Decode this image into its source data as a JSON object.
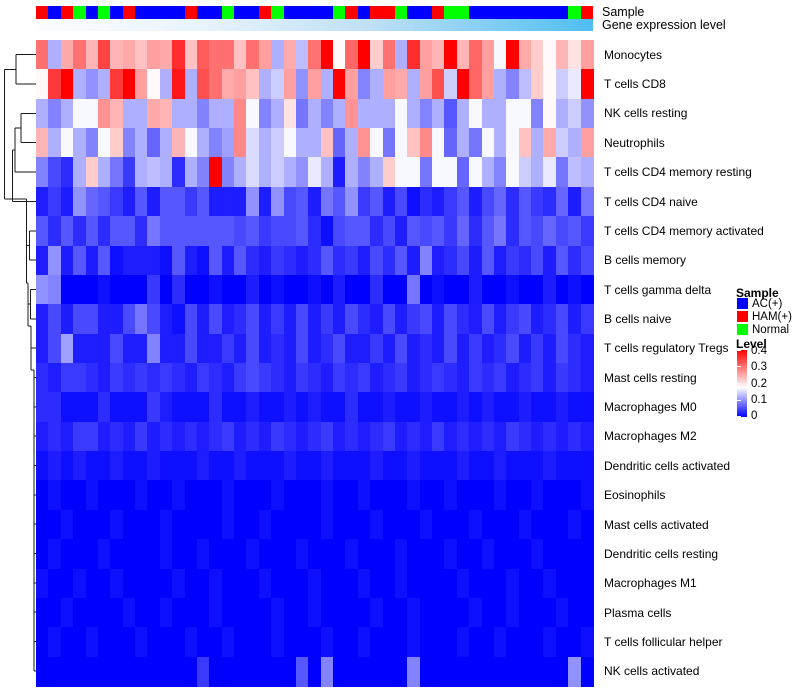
{
  "annotation_tracks": {
    "sample_label": "Sample",
    "gene_expression_label": "Gene expression level",
    "gene_expression_gradient": {
      "start": "#FDFDFF",
      "mid": "#BFE0F5",
      "end": "#4FBEF2"
    }
  },
  "legend": {
    "sample": {
      "title": "Sample",
      "items": [
        {
          "label": "AC(+)",
          "color": "#0000FF"
        },
        {
          "label": "HAM(+)",
          "color": "#FF0000"
        },
        {
          "label": "Normal",
          "color": "#00FF00"
        }
      ]
    },
    "level": {
      "title": "Level",
      "ticks": [
        "0.4",
        "0.3",
        "0.2",
        "0.1",
        "0"
      ],
      "top_color": "#FF0000",
      "mid_color": "#FFFFFF",
      "bottom_color": "#0000FF"
    }
  },
  "chart_data": {
    "type": "heatmap",
    "title": "",
    "rows": [
      "Monocytes",
      "T cells CD8",
      "NK cells resting",
      "Neutrophils",
      "T cells CD4 memory resting",
      "T cells CD4 naive",
      "T cells CD4 memory activated",
      "B cells memory",
      "T cells gamma delta",
      "B cells naive",
      "T cells regulatory Tregs",
      "Mast cells resting",
      "Macrophages M0",
      "Macrophages M2",
      "Dendritic cells activated",
      "Eosinophils",
      "Mast cells activated",
      "Dendritic cells resting",
      "Macrophages M1",
      "Plasma cells",
      "T cells follicular helper",
      "NK cells activated"
    ],
    "n_columns": 45,
    "value_range": [
      0,
      0.4
    ],
    "colormap": {
      "low": "#0000FF",
      "mid": "#FFFFFF",
      "high": "#FF0000",
      "midpoint": 0.175
    },
    "row_dendrogram": true,
    "sample_groups_by_column": [
      "HAM(+)",
      "AC(+)",
      "HAM(+)",
      "Normal",
      "AC(+)",
      "Normal",
      "AC(+)",
      "HAM(+)",
      "AC(+)",
      "AC(+)",
      "AC(+)",
      "AC(+)",
      "HAM(+)",
      "AC(+)",
      "AC(+)",
      "Normal",
      "AC(+)",
      "AC(+)",
      "HAM(+)",
      "Normal",
      "AC(+)",
      "AC(+)",
      "AC(+)",
      "AC(+)",
      "Normal",
      "HAM(+)",
      "AC(+)",
      "HAM(+)",
      "HAM(+)",
      "Normal",
      "AC(+)",
      "AC(+)",
      "HAM(+)",
      "Normal",
      "Normal",
      "AC(+)",
      "AC(+)",
      "AC(+)",
      "AC(+)",
      "AC(+)",
      "AC(+)",
      "AC(+)",
      "AC(+)",
      "Normal",
      "HAM(+)"
    ],
    "values": [
      [
        0.3,
        0.12,
        0.25,
        0.3,
        0.24,
        0.34,
        0.24,
        0.25,
        0.23,
        0.26,
        0.25,
        0.36,
        0.23,
        0.32,
        0.3,
        0.3,
        0.23,
        0.3,
        0.26,
        0.12,
        0.25,
        0.13,
        0.3,
        0.4,
        0.18,
        0.31,
        0.4,
        0.22,
        0.3,
        0.12,
        0.36,
        0.26,
        0.24,
        0.4,
        0.24,
        0.31,
        0.26,
        0.17,
        0.4,
        0.25,
        0.22,
        0.18,
        0.24,
        0.2,
        0.26
      ],
      [
        0.18,
        0.35,
        0.4,
        0.12,
        0.1,
        0.12,
        0.35,
        0.4,
        0.26,
        0.18,
        0.12,
        0.38,
        0.12,
        0.33,
        0.3,
        0.25,
        0.26,
        0.23,
        0.12,
        0.14,
        0.26,
        0.1,
        0.26,
        0.12,
        0.4,
        0.26,
        0.09,
        0.12,
        0.26,
        0.25,
        0.12,
        0.26,
        0.33,
        0.14,
        0.4,
        0.31,
        0.26,
        0.12,
        0.09,
        0.13,
        0.22,
        0.18,
        0.14,
        0.16,
        0.4
      ],
      [
        0.12,
        0.09,
        0.12,
        0.17,
        0.17,
        0.27,
        0.24,
        0.12,
        0.12,
        0.25,
        0.24,
        0.12,
        0.12,
        0.09,
        0.12,
        0.12,
        0.28,
        0.17,
        0.09,
        0.12,
        0.2,
        0.08,
        0.12,
        0.09,
        0.12,
        0.27,
        0.12,
        0.12,
        0.12,
        0.17,
        0.12,
        0.09,
        0.12,
        0.06,
        0.12,
        0.17,
        0.12,
        0.12,
        0.17,
        0.17,
        0.09,
        0.18,
        0.12,
        0.14,
        0.1
      ],
      [
        0.24,
        0.12,
        0.17,
        0.12,
        0.09,
        0.17,
        0.22,
        0.09,
        0.12,
        0.07,
        0.12,
        0.24,
        0.17,
        0.12,
        0.09,
        0.11,
        0.28,
        0.15,
        0.12,
        0.14,
        0.17,
        0.12,
        0.12,
        0.23,
        0.07,
        0.12,
        0.27,
        0.17,
        0.08,
        0.17,
        0.23,
        0.28,
        0.17,
        0.07,
        0.12,
        0.08,
        0.17,
        0.12,
        0.17,
        0.23,
        0.12,
        0.25,
        0.14,
        0.12,
        0.26
      ],
      [
        0.09,
        0.05,
        0.03,
        0.12,
        0.22,
        0.12,
        0.08,
        0.04,
        0.12,
        0.13,
        0.12,
        0.03,
        0.12,
        0.09,
        0.4,
        0.09,
        0.12,
        0.15,
        0.12,
        0.14,
        0.12,
        0.1,
        0.16,
        0.12,
        0.02,
        0.12,
        0.09,
        0.12,
        0.22,
        0.17,
        0.17,
        0.08,
        0.17,
        0.17,
        0.07,
        0.17,
        0.12,
        0.09,
        0.17,
        0.14,
        0.12,
        0.16,
        0.08,
        0.13,
        0.12
      ],
      [
        0.02,
        0.04,
        0.02,
        0.1,
        0.07,
        0.06,
        0.04,
        0.02,
        0.06,
        0.02,
        0.06,
        0.06,
        0.04,
        0.06,
        0.02,
        0.02,
        0.02,
        0.1,
        0.02,
        0.1,
        0.05,
        0.06,
        0.02,
        0.08,
        0.06,
        0.1,
        0.04,
        0.06,
        0.02,
        0.05,
        0.01,
        0.03,
        0.02,
        0.04,
        0.06,
        0.02,
        0.05,
        0.07,
        0.03,
        0.06,
        0.04,
        0.03,
        0.07,
        0.02,
        0.08
      ],
      [
        0.06,
        0.03,
        0.06,
        0.03,
        0.06,
        0.03,
        0.06,
        0.06,
        0.03,
        0.08,
        0.06,
        0.06,
        0.06,
        0.06,
        0.06,
        0.06,
        0.05,
        0.06,
        0.04,
        0.05,
        0.05,
        0.06,
        0.03,
        0.01,
        0.05,
        0.06,
        0.06,
        0.03,
        0.05,
        0.02,
        0.06,
        0.05,
        0.06,
        0.04,
        0.07,
        0.03,
        0.06,
        0.08,
        0.03,
        0.06,
        0.05,
        0.07,
        0.05,
        0.06,
        0.04
      ],
      [
        0.02,
        0.1,
        0.02,
        0.06,
        0.02,
        0.06,
        0.01,
        0.02,
        0.02,
        0.02,
        0.01,
        0.06,
        0.02,
        0.01,
        0.06,
        0.02,
        0.06,
        0.03,
        0.02,
        0.04,
        0.03,
        0.02,
        0.03,
        0.06,
        0.03,
        0.04,
        0.02,
        0.05,
        0.03,
        0.06,
        0.02,
        0.09,
        0.02,
        0.03,
        0.05,
        0.02,
        0.06,
        0.02,
        0.04,
        0.03,
        0.05,
        0.02,
        0.06,
        0.03,
        0.05
      ],
      [
        0.1,
        0.09,
        0,
        0,
        0,
        0.01,
        0,
        0,
        0,
        0.04,
        0,
        0.03,
        0,
        0,
        0.01,
        0,
        0,
        0.02,
        0,
        0.01,
        0,
        0,
        0.01,
        0,
        0.02,
        0,
        0,
        0.03,
        0,
        0,
        0.08,
        0,
        0.01,
        0,
        0,
        0.02,
        0,
        0,
        0.01,
        0,
        0,
        0.02,
        0,
        0.01,
        0
      ],
      [
        0.02,
        0.05,
        0.02,
        0.05,
        0.05,
        0.02,
        0.02,
        0.05,
        0.08,
        0.05,
        0.02,
        0.01,
        0.05,
        0.02,
        0.05,
        0.02,
        0.03,
        0.05,
        0.02,
        0.04,
        0.02,
        0.05,
        0.02,
        0.04,
        0.02,
        0.05,
        0.03,
        0.02,
        0.05,
        0.02,
        0.04,
        0.05,
        0.02,
        0.05,
        0.03,
        0.02,
        0.05,
        0.02,
        0.04,
        0.05,
        0.02,
        0.03,
        0.05,
        0.02,
        0.04
      ],
      [
        0.02,
        0.05,
        0.11,
        0.02,
        0.02,
        0.02,
        0.05,
        0.02,
        0.02,
        0.09,
        0.02,
        0.02,
        0.05,
        0.02,
        0.02,
        0.04,
        0.02,
        0.05,
        0.02,
        0.03,
        0.02,
        0.05,
        0.02,
        0.03,
        0.05,
        0.02,
        0.02,
        0.04,
        0.02,
        0.05,
        0.02,
        0.03,
        0.02,
        0.05,
        0.02,
        0.04,
        0.02,
        0.03,
        0.05,
        0.02,
        0.04,
        0.02,
        0.05,
        0.03,
        0.02
      ],
      [
        0.03,
        0.02,
        0.04,
        0.04,
        0.03,
        0.02,
        0.04,
        0.03,
        0.04,
        0.03,
        0.04,
        0.03,
        0.02,
        0.04,
        0.03,
        0.02,
        0.04,
        0.05,
        0.04,
        0.03,
        0.02,
        0.04,
        0.03,
        0.02,
        0.04,
        0.03,
        0.04,
        0.02,
        0.03,
        0.04,
        0.02,
        0.03,
        0.04,
        0.03,
        0.02,
        0.04,
        0.03,
        0.04,
        0.02,
        0.03,
        0.04,
        0.02,
        0.04,
        0.03,
        0.02
      ],
      [
        0.03,
        0.03,
        0.01,
        0.01,
        0.01,
        0.03,
        0.01,
        0.01,
        0.01,
        0.04,
        0.02,
        0.01,
        0.01,
        0.01,
        0.03,
        0.01,
        0.01,
        0.02,
        0.01,
        0.01,
        0.02,
        0.01,
        0.02,
        0.01,
        0.01,
        0.03,
        0.01,
        0.01,
        0.02,
        0.01,
        0.01,
        0.02,
        0.01,
        0.01,
        0.02,
        0.01,
        0.02,
        0.01,
        0.01,
        0.02,
        0.01,
        0.01,
        0.02,
        0.01,
        0.01
      ],
      [
        0.02,
        0.03,
        0.02,
        0.04,
        0.04,
        0.02,
        0.03,
        0.02,
        0.04,
        0.02,
        0.03,
        0.02,
        0.03,
        0.02,
        0.03,
        0.04,
        0.02,
        0.03,
        0.02,
        0.04,
        0.03,
        0.02,
        0.03,
        0.04,
        0.02,
        0.03,
        0.02,
        0.03,
        0.04,
        0.02,
        0.03,
        0.02,
        0.04,
        0.02,
        0.03,
        0.02,
        0.03,
        0.02,
        0.04,
        0.03,
        0.02,
        0.03,
        0.02,
        0.03,
        0.02
      ],
      [
        0.01,
        0.02,
        0.01,
        0.02,
        0.01,
        0.01,
        0.02,
        0.01,
        0.01,
        0.02,
        0.01,
        0.01,
        0.01,
        0.02,
        0.01,
        0.01,
        0.02,
        0.01,
        0.01,
        0.01,
        0.02,
        0.01,
        0.01,
        0.02,
        0.01,
        0.01,
        0.01,
        0.02,
        0.01,
        0.01,
        0.02,
        0.01,
        0.01,
        0.01,
        0.02,
        0.01,
        0.01,
        0.02,
        0.01,
        0.01,
        0.01,
        0.02,
        0.01,
        0.01,
        0.01
      ],
      [
        0,
        0.01,
        0,
        0,
        0.01,
        0,
        0,
        0,
        0.01,
        0,
        0,
        0.01,
        0,
        0,
        0,
        0.01,
        0,
        0,
        0,
        0.01,
        0,
        0,
        0,
        0.01,
        0,
        0,
        0.01,
        0,
        0,
        0,
        0.01,
        0,
        0,
        0.01,
        0,
        0,
        0,
        0.01,
        0,
        0,
        0.01,
        0,
        0,
        0,
        0.01
      ],
      [
        0,
        0,
        0.01,
        0,
        0,
        0,
        0.01,
        0,
        0,
        0,
        0.01,
        0,
        0,
        0,
        0,
        0.01,
        0,
        0,
        0.01,
        0,
        0,
        0,
        0,
        0.01,
        0,
        0,
        0,
        0.01,
        0,
        0,
        0,
        0.01,
        0,
        0,
        0,
        0.01,
        0,
        0,
        0,
        0.01,
        0,
        0,
        0,
        0.01,
        0
      ],
      [
        0,
        0.01,
        0,
        0,
        0,
        0.01,
        0,
        0,
        0,
        0,
        0.01,
        0,
        0,
        0.01,
        0,
        0,
        0,
        0.01,
        0,
        0,
        0,
        0.01,
        0,
        0,
        0,
        0.01,
        0,
        0,
        0,
        0.01,
        0,
        0,
        0,
        0.01,
        0,
        0,
        0.01,
        0,
        0,
        0,
        0.01,
        0,
        0,
        0,
        0
      ],
      [
        0.01,
        0,
        0,
        0.01,
        0,
        0,
        0.01,
        0,
        0,
        0,
        0,
        0.01,
        0,
        0,
        0.01,
        0,
        0,
        0,
        0.01,
        0,
        0,
        0,
        0.01,
        0,
        0,
        0,
        0.01,
        0,
        0,
        0.01,
        0,
        0,
        0,
        0,
        0.01,
        0,
        0,
        0,
        0.01,
        0,
        0,
        0.01,
        0,
        0,
        0
      ],
      [
        0,
        0,
        0.01,
        0,
        0,
        0,
        0,
        0.01,
        0,
        0,
        0.01,
        0,
        0,
        0,
        0.01,
        0,
        0,
        0,
        0,
        0.01,
        0,
        0,
        0.01,
        0,
        0,
        0,
        0,
        0.01,
        0,
        0,
        0.01,
        0,
        0,
        0,
        0,
        0.01,
        0,
        0,
        0.01,
        0,
        0,
        0,
        0.01,
        0,
        0
      ],
      [
        0,
        0.01,
        0,
        0,
        0.01,
        0,
        0,
        0,
        0.01,
        0,
        0,
        0,
        0.01,
        0,
        0,
        0.01,
        0,
        0,
        0,
        0.01,
        0,
        0,
        0,
        0.01,
        0,
        0,
        0.01,
        0,
        0,
        0,
        0.01,
        0,
        0,
        0,
        0.01,
        0,
        0,
        0.01,
        0,
        0,
        0,
        0.01,
        0,
        0,
        0.01
      ],
      [
        0,
        0,
        0,
        0,
        0,
        0,
        0,
        0,
        0,
        0,
        0,
        0,
        0,
        0.04,
        0,
        0,
        0,
        0,
        0,
        0,
        0,
        0.06,
        0,
        0.09,
        0,
        0,
        0,
        0,
        0,
        0,
        0.09,
        0,
        0,
        0,
        0,
        0,
        0,
        0,
        0,
        0,
        0,
        0,
        0,
        0.1,
        0
      ]
    ]
  }
}
